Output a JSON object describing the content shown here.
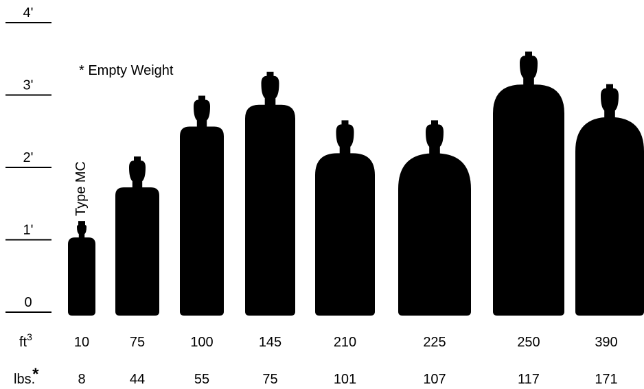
{
  "chart_data": {
    "type": "cylinder",
    "note": "* Empty Weight",
    "annotation": "Type MC",
    "capacity_label": "ft",
    "capacity_unit_sup": "3",
    "weight_label": "lbs.",
    "weight_mark": "*",
    "capacity": [
      10,
      75,
      100,
      145,
      210,
      225,
      250,
      390
    ],
    "weight": [
      8,
      44,
      55,
      75,
      101,
      107,
      117,
      171
    ],
    "values": [
      1.26,
      2.15,
      2.99,
      3.32,
      2.65,
      2.65,
      3.6,
      3.15
    ],
    "color": "#000000",
    "ylim": [
      0,
      4
    ],
    "yticks": [
      {
        "value": 0,
        "label": "0"
      },
      {
        "value": 1,
        "label": "1'"
      },
      {
        "value": 2,
        "label": "2'"
      },
      {
        "value": 3,
        "label": "3'"
      },
      {
        "value": 4,
        "label": "4'"
      }
    ]
  }
}
